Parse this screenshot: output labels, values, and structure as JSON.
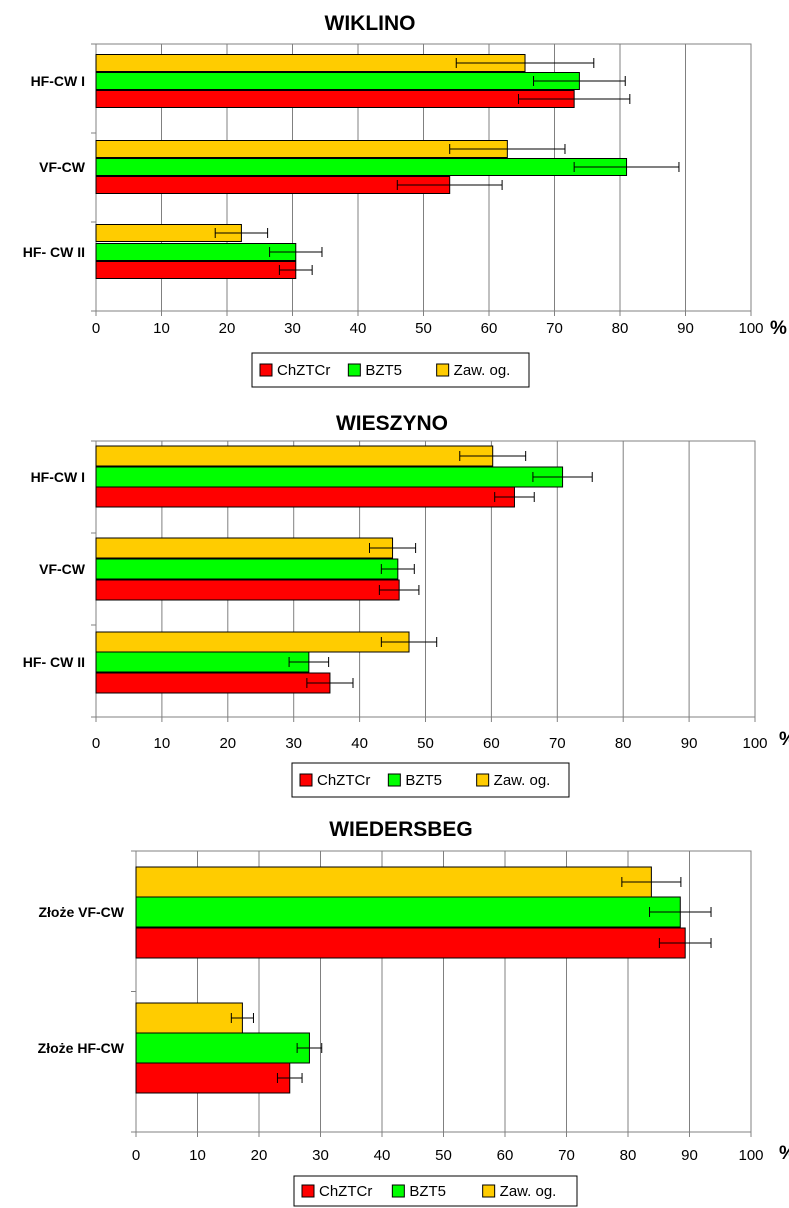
{
  "unit_label": "%",
  "colors": {
    "ChZTCr": "#ff0000",
    "BZT5": "#00ff00",
    "Zaw. og.": "#ffcc00",
    "grid": "#808080",
    "error": "#000000"
  },
  "legend": [
    "ChZTCr",
    "BZT5",
    "Zaw. og."
  ],
  "chart_data": [
    {
      "type": "bar",
      "orientation": "horizontal",
      "title": "WIKLINO",
      "categories": [
        "HF-CW I",
        "VF-CW",
        "HF- CW II"
      ],
      "xlim": [
        0,
        100
      ],
      "xticks": [
        0,
        10,
        20,
        30,
        40,
        50,
        60,
        70,
        80,
        90,
        100
      ],
      "grid": true,
      "legend_position": "bottom",
      "series": [
        {
          "name": "ChZTCr",
          "values": [
            73,
            54,
            30.5
          ],
          "errors": [
            8.5,
            8,
            2.5
          ]
        },
        {
          "name": "BZT5",
          "values": [
            73.8,
            81,
            30.5
          ],
          "errors": [
            7,
            8,
            4
          ]
        },
        {
          "name": "Zaw. og.",
          "values": [
            65.5,
            62.8,
            22.2
          ],
          "errors": [
            10.5,
            8.8,
            4
          ]
        }
      ]
    },
    {
      "type": "bar",
      "orientation": "horizontal",
      "title": "WIESZYNO",
      "categories": [
        "HF-CW I",
        "VF-CW",
        "HF- CW II"
      ],
      "xlim": [
        0,
        100
      ],
      "xticks": [
        0,
        10,
        20,
        30,
        40,
        50,
        60,
        70,
        80,
        90,
        100
      ],
      "grid": true,
      "legend_position": "bottom",
      "series": [
        {
          "name": "ChZTCr",
          "values": [
            63.5,
            46,
            35.5
          ],
          "errors": [
            3,
            3,
            3.5
          ]
        },
        {
          "name": "BZT5",
          "values": [
            70.8,
            45.8,
            32.3
          ],
          "errors": [
            4.5,
            2.5,
            3
          ]
        },
        {
          "name": "Zaw. og.",
          "values": [
            60.2,
            45,
            47.5
          ],
          "errors": [
            5,
            3.5,
            4.2
          ]
        }
      ]
    },
    {
      "type": "bar",
      "orientation": "horizontal",
      "title": "WIEDERSBEG",
      "categories": [
        "Złoże VF-CW",
        "Złoże HF-CW"
      ],
      "xlim": [
        0,
        100
      ],
      "xticks": [
        0,
        10,
        20,
        30,
        40,
        50,
        60,
        70,
        80,
        90,
        100
      ],
      "grid": true,
      "legend_position": "bottom",
      "series": [
        {
          "name": "ChZTCr",
          "values": [
            89.3,
            25
          ],
          "errors": [
            4.2,
            2
          ]
        },
        {
          "name": "BZT5",
          "values": [
            88.5,
            28.2
          ],
          "errors": [
            5,
            2
          ]
        },
        {
          "name": "Zaw. og.",
          "values": [
            83.8,
            17.3
          ],
          "errors": [
            4.8,
            1.8
          ]
        }
      ]
    }
  ]
}
